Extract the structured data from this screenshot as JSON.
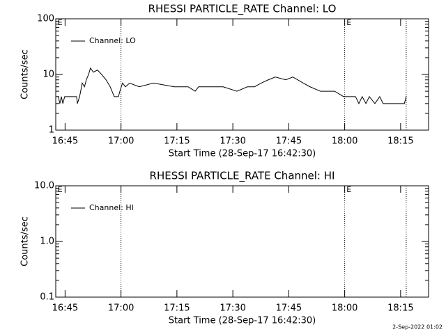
{
  "chart_data": [
    {
      "type": "line",
      "title": "RHESSI PARTICLE_RATE Channel: LO",
      "xlabel": "Start Time (28-Sep-17 16:42:30)",
      "ylabel": "Counts/sec",
      "log_y": true,
      "ylim": [
        1,
        100
      ],
      "yticks": [
        1,
        10,
        100
      ],
      "xlim": [
        1002.5,
        1102.5
      ],
      "xticks": [
        {
          "value": 1005,
          "label": "16:45"
        },
        {
          "value": 1020,
          "label": "17:00"
        },
        {
          "value": 1035,
          "label": "17:15"
        },
        {
          "value": 1050,
          "label": "17:30"
        },
        {
          "value": 1065,
          "label": "17:45"
        },
        {
          "value": 1080,
          "label": "18:00"
        },
        {
          "value": 1095,
          "label": "18:15"
        }
      ],
      "vlines": [
        1020,
        1080,
        1096.5
      ],
      "annotations": [
        {
          "x": 1003,
          "label": "E"
        },
        {
          "x": 1080.5,
          "label": "E"
        }
      ],
      "legend": "upper left",
      "series": [
        {
          "name": "Channel: LO",
          "color": "#000000",
          "x": [
            1003.2,
            1003.6,
            1004.0,
            1004.4,
            1004.9,
            1008.1,
            1008.3,
            1008.9,
            1009.6,
            1010.2,
            1010.7,
            1011.3,
            1011.8,
            1012.6,
            1013.7,
            1014.8,
            1016.0,
            1017.1,
            1018.2,
            1019.3,
            1019.7,
            1020.4,
            1021.2,
            1022.3,
            1024.9,
            1028.7,
            1034.3,
            1038.0,
            1039.9,
            1040.8,
            1043.6,
            1047.4,
            1051.1,
            1053.9,
            1055.8,
            1057.6,
            1059.5,
            1061.4,
            1064.2,
            1066.1,
            1068.9,
            1070.7,
            1073.5,
            1077.3,
            1079.7,
            1082.9,
            1083.8,
            1084.7,
            1085.7,
            1086.6,
            1088.1,
            1089.4,
            1090.3,
            1092.2,
            1094.1,
            1096.0,
            1096.5
          ],
          "values": [
            4,
            3,
            4,
            3,
            4,
            4,
            3,
            4,
            7,
            6,
            8,
            10,
            13,
            11,
            12,
            10,
            8,
            6,
            4,
            4,
            5,
            7,
            6,
            7,
            6,
            7,
            6,
            6,
            5,
            6,
            6,
            6,
            5,
            6,
            6,
            7,
            8,
            9,
            8,
            9,
            7,
            6,
            5,
            5,
            4,
            4,
            3,
            4,
            3,
            4,
            3,
            4,
            3,
            3,
            3,
            3,
            4
          ]
        }
      ]
    },
    {
      "type": "line",
      "title": "RHESSI PARTICLE_RATE Channel: HI",
      "xlabel": "Start Time (28-Sep-17 16:42:30)",
      "ylabel": "Counts/sec",
      "log_y": true,
      "ylim": [
        0.1,
        10
      ],
      "yticks": [
        0.1,
        {
          "value": 1,
          "label": "1.0"
        },
        {
          "value": 10,
          "label": "10.0"
        }
      ],
      "xlim": [
        1002.5,
        1102.5
      ],
      "xticks": [
        {
          "value": 1005,
          "label": "16:45"
        },
        {
          "value": 1020,
          "label": "17:00"
        },
        {
          "value": 1035,
          "label": "17:15"
        },
        {
          "value": 1050,
          "label": "17:30"
        },
        {
          "value": 1065,
          "label": "17:45"
        },
        {
          "value": 1080,
          "label": "18:00"
        },
        {
          "value": 1095,
          "label": "18:15"
        }
      ],
      "vlines": [
        1020,
        1080,
        1096.5
      ],
      "annotations": [
        {
          "x": 1003,
          "label": "E"
        },
        {
          "x": 1080.5,
          "label": "E"
        }
      ],
      "legend": "upper left",
      "series": [
        {
          "name": "Channel: HI",
          "color": "#000000",
          "x": [],
          "values": []
        }
      ]
    }
  ],
  "footer": "2-Sep-2022 01:02"
}
